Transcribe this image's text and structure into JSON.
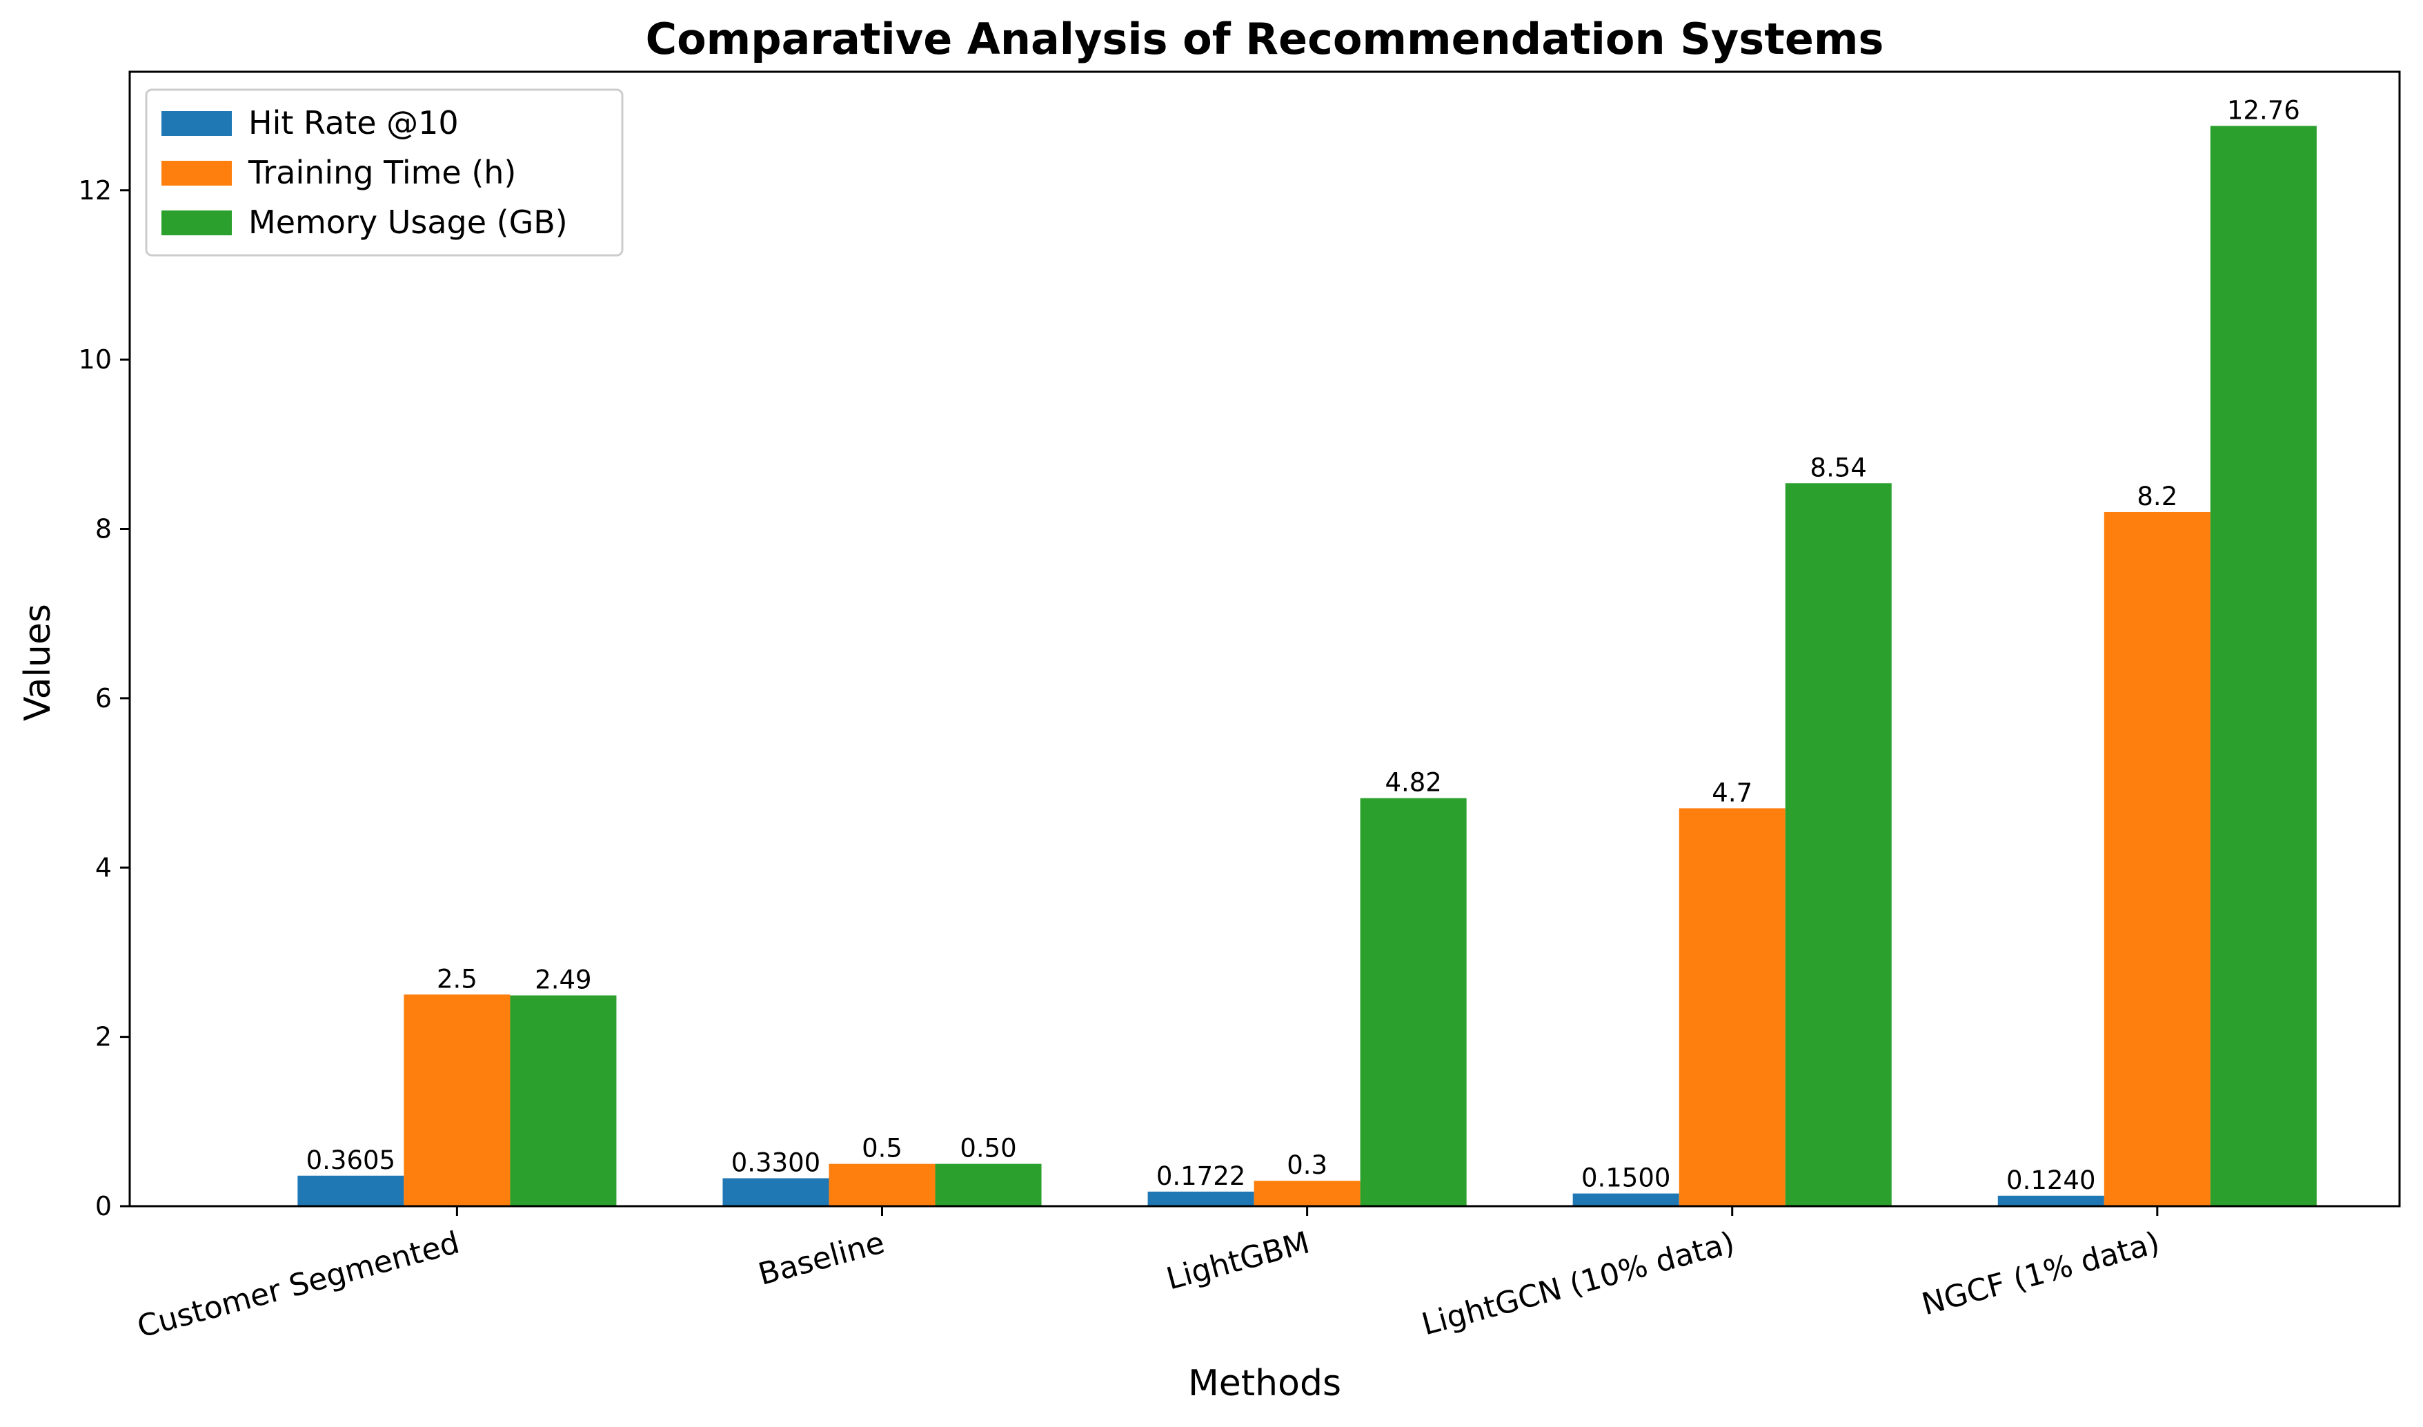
{
  "chart_data": {
    "type": "bar",
    "title": "Comparative Analysis of Recommendation Systems",
    "xlabel": "Methods",
    "ylabel": "Values",
    "categories": [
      "Customer Segmented",
      "Baseline",
      "LightGBM",
      "LightGCN (10% data)",
      "NGCF (1% data)"
    ],
    "ylim": [
      0,
      13.4
    ],
    "yticks": [
      0,
      2,
      4,
      6,
      8,
      10,
      12
    ],
    "ytick_labels": [
      "0",
      "2",
      "4",
      "6",
      "8",
      "10",
      "12"
    ],
    "grid": false,
    "legend_position": "top-left",
    "series": [
      {
        "name": "Hit Rate @10",
        "color": "#1f77b4",
        "values": [
          0.3605,
          0.33,
          0.1722,
          0.15,
          0.124
        ],
        "labels": [
          "0.3605",
          "0.3300",
          "0.1722",
          "0.1500",
          "0.1240"
        ]
      },
      {
        "name": "Training Time (h)",
        "color": "#ff7f0e",
        "values": [
          2.5,
          0.5,
          0.3,
          4.7,
          8.2
        ],
        "labels": [
          "2.5",
          "0.5",
          "0.3",
          "4.7",
          "8.2"
        ]
      },
      {
        "name": "Memory Usage (GB)",
        "color": "#2ca02c",
        "values": [
          2.49,
          0.5,
          4.82,
          8.54,
          12.76
        ],
        "labels": [
          "2.49",
          "0.50",
          "4.82",
          "8.54",
          "12.76"
        ]
      }
    ]
  }
}
